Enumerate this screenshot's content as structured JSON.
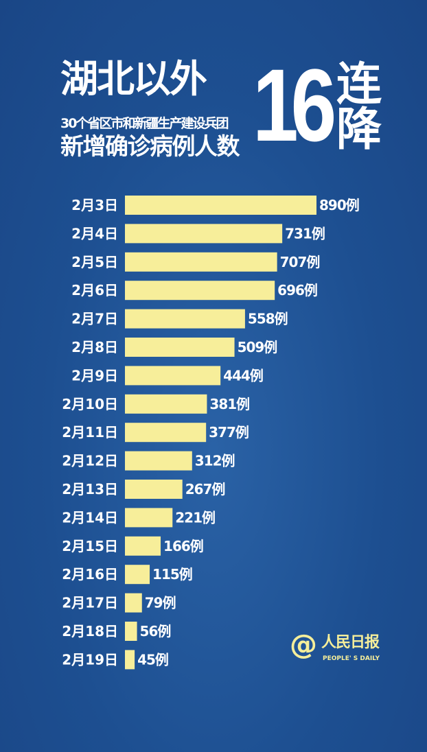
{
  "header": {
    "title": "湖北以外",
    "subtitle": "30个省区市和新疆生产建设兵团",
    "title_line2": "新增确诊病例人数",
    "big_number": "16",
    "big_word": "连降"
  },
  "logo": {
    "symbol": "@",
    "name_cn": "人民日报",
    "name_en": "PEOPLE' S DAILY"
  },
  "colors": {
    "background": "#1d4f91",
    "bar": "#f7ee9a",
    "text": "#ffffff"
  },
  "chart_data": {
    "type": "bar",
    "orientation": "horizontal",
    "categories": [
      "2月3日",
      "2月4日",
      "2月5日",
      "2月6日",
      "2月7日",
      "2月8日",
      "2月9日",
      "2月10日",
      "2月11日",
      "2月12日",
      "2月13日",
      "2月14日",
      "2月15日",
      "2月16日",
      "2月17日",
      "2月18日",
      "2月19日"
    ],
    "values": [
      890,
      731,
      707,
      696,
      558,
      509,
      444,
      381,
      377,
      312,
      267,
      221,
      166,
      115,
      79,
      56,
      45
    ],
    "value_suffix": "例",
    "grid": false
  }
}
